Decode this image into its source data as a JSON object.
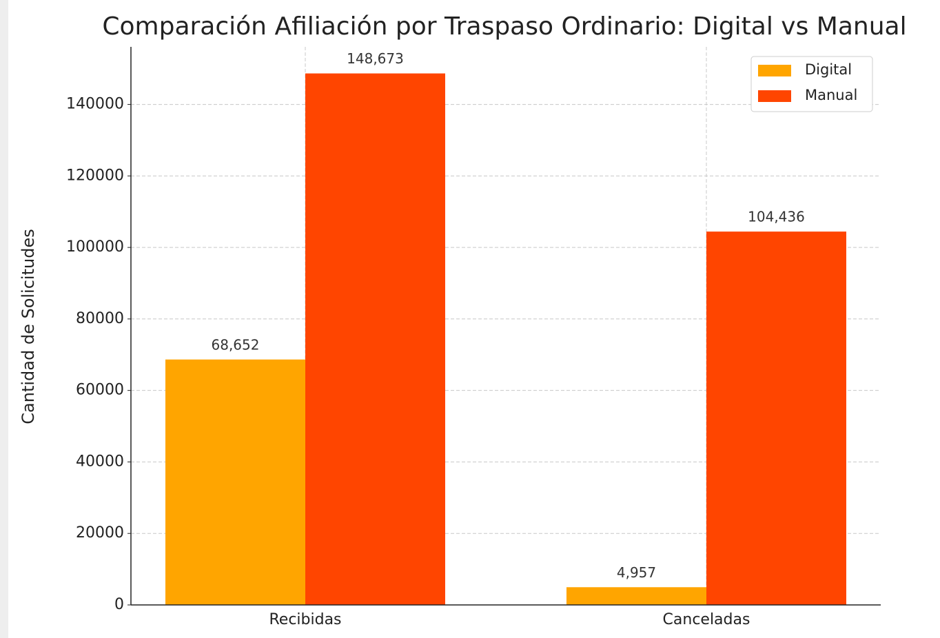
{
  "chart_data": {
    "type": "bar",
    "title": "Comparación Afiliación por Traspaso Ordinario: Digital vs Manual",
    "y_label": "Cantidad de Solicitudes",
    "categories": [
      "Recibidas",
      "Canceladas"
    ],
    "series": [
      {
        "name": "Digital",
        "color": "#ffa500",
        "values": [
          68652,
          4957
        ],
        "value_labels": [
          "68,652",
          "4,957"
        ]
      },
      {
        "name": "Manual",
        "color": "#ff4500",
        "values": [
          148673,
          104436
        ],
        "value_labels": [
          "148,673",
          "104,436"
        ]
      }
    ],
    "ylim": [
      0,
      156107
    ],
    "yticks": [
      0,
      20000,
      40000,
      60000,
      80000,
      100000,
      120000,
      140000
    ],
    "grid": true,
    "legend": "upper right"
  }
}
